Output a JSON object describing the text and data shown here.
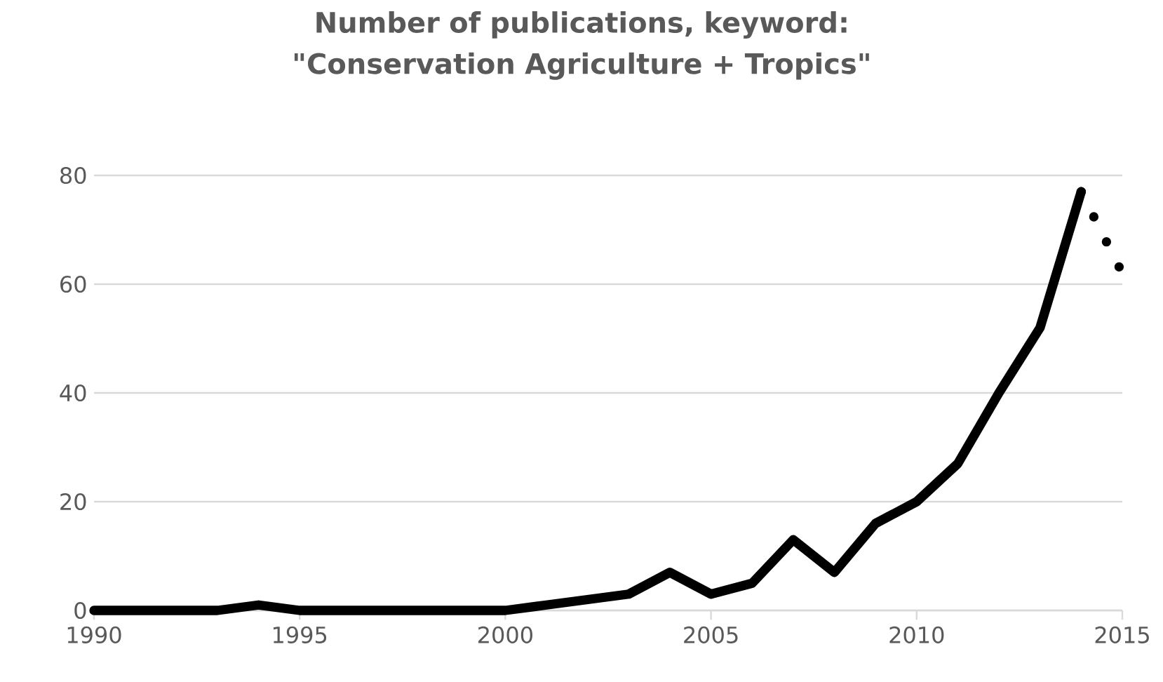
{
  "chart_data": {
    "type": "line",
    "title": "Number of publications, keyword: \"Conservation Agriculture + Tropics\"",
    "x": [
      1990,
      1991,
      1992,
      1993,
      1994,
      1995,
      1996,
      1997,
      1998,
      1999,
      2000,
      2001,
      2002,
      2003,
      2004,
      2005,
      2006,
      2007,
      2008,
      2009,
      2010,
      2011,
      2012,
      2013,
      2014
    ],
    "series": [
      {
        "color": "#000000",
        "line_style": "solid",
        "values": [
          0,
          0,
          0,
          0,
          1,
          0,
          0,
          0,
          0,
          0,
          0,
          1,
          2,
          3,
          7,
          3,
          5,
          13,
          7,
          16,
          20,
          27,
          40,
          52,
          77
        ]
      },
      {
        "color": "#000000",
        "line_style": "dotted",
        "x": [
          2014,
          2015
        ],
        "values": [
          77,
          62
        ]
      }
    ],
    "xlim": [
      1990,
      2015
    ],
    "xticks": [
      1990,
      1995,
      2000,
      2005,
      2010,
      2015
    ],
    "ylim": [
      0,
      80
    ],
    "yticks": [
      0,
      20,
      40,
      60,
      80
    ],
    "grid": "y",
    "marker": "none"
  }
}
